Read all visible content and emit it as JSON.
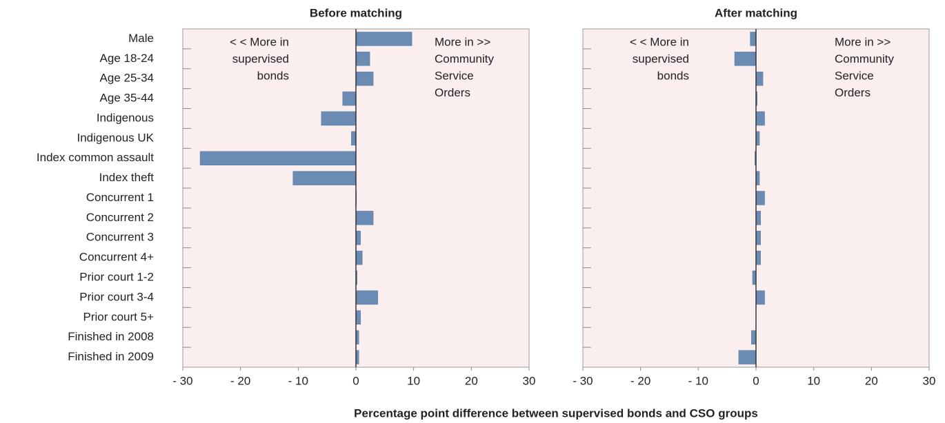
{
  "xlabel": "Percentage point difference between supervised bonds and CSO groups",
  "chart_data": [
    {
      "type": "bar",
      "orientation": "horizontal",
      "title": "Before matching",
      "color": "#6a8bb4",
      "background": "#fbeeee",
      "categories": [
        "Male",
        "Age 18-24",
        "Age 25-34",
        "Age 35-44",
        "Indigenous",
        "Indigenous UK",
        "Index common assault",
        "Index theft",
        "Concurrent 1",
        "Concurrent 2",
        "Concurrent 3",
        "Concurrent 4+",
        "Prior court 1-2",
        "Prior court 3-4",
        "Prior court 5+",
        "Finished in 2008",
        "Finished in 2009"
      ],
      "values": [
        9.7,
        2.4,
        3,
        -2.3,
        -6,
        -0.8,
        -27,
        -10.9,
        0.1,
        3,
        0.8,
        1.1,
        0.2,
        3.8,
        0.8,
        0.5,
        0.5
      ],
      "xlim": [
        -30,
        30
      ],
      "xticks": [
        {
          "value": -30,
          "label": "- 30"
        },
        {
          "value": -20,
          "label": "- 20"
        },
        {
          "value": -10,
          "label": "- 10"
        },
        0,
        10,
        20,
        30
      ],
      "annotations": [
        [
          "< < More in",
          "supervised",
          "bonds"
        ],
        [
          "More in >>",
          "Community",
          "Service",
          "Orders"
        ]
      ]
    },
    {
      "type": "bar",
      "orientation": "horizontal",
      "title": "After matching",
      "color": "#6a8bb4",
      "background": "#fbeeee",
      "values": [
        -1,
        -3.7,
        1.2,
        0.2,
        1.5,
        0.6,
        -0.2,
        0.6,
        1.5,
        0.8,
        0.8,
        0.8,
        -0.6,
        1.5,
        0,
        -0.8,
        -3
      ],
      "xlim": [
        -30,
        30
      ],
      "xticks": [
        {
          "value": -30,
          "label": "- 30"
        },
        {
          "value": -20,
          "label": "- 20"
        },
        {
          "value": -10,
          "label": "- 10"
        },
        0,
        10,
        20,
        30
      ],
      "annotations": [
        [
          "< < More in",
          "supervised",
          "bonds"
        ],
        [
          "More in >>",
          "Community",
          "Service",
          "Orders"
        ]
      ]
    }
  ]
}
